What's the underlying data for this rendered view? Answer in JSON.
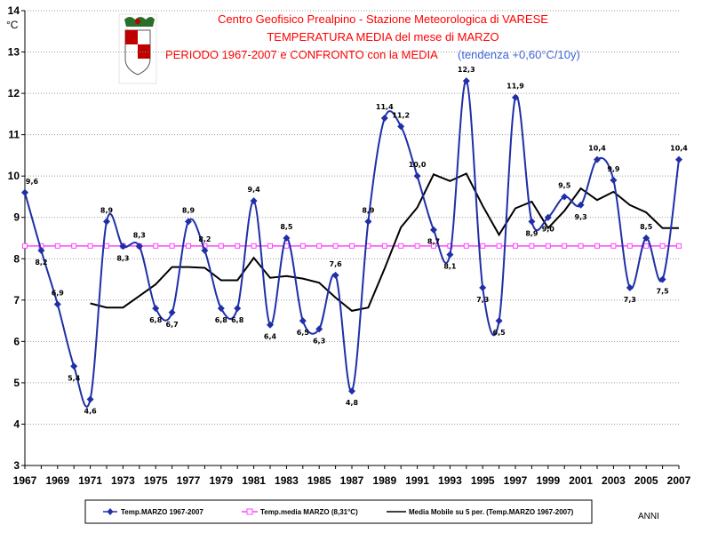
{
  "chart_data": {
    "type": "line",
    "title_lines": [
      "Centro Geofisico Prealpino - Stazione Meteorologica di VARESE",
      "TEMPERATURA MEDIA del mese di MARZO",
      "PERIODO 1967-2007 e CONFRONTO con la MEDIA"
    ],
    "trend_note": "(tendenza +0,60°C/10y)",
    "ylabel": "°C",
    "xlabel": "ANNI",
    "ylim": [
      3,
      14
    ],
    "yticks": [
      3,
      4,
      5,
      6,
      7,
      8,
      9,
      10,
      11,
      12,
      13,
      14
    ],
    "xlim": [
      1967,
      2007
    ],
    "xticks": [
      1967,
      1969,
      1971,
      1973,
      1975,
      1977,
      1979,
      1981,
      1983,
      1985,
      1987,
      1989,
      1991,
      1993,
      1995,
      1997,
      1999,
      2001,
      2003,
      2005,
      2007
    ],
    "x": [
      1967,
      1968,
      1969,
      1970,
      1971,
      1972,
      1973,
      1974,
      1975,
      1976,
      1977,
      1978,
      1979,
      1980,
      1981,
      1982,
      1983,
      1984,
      1985,
      1986,
      1987,
      1988,
      1989,
      1990,
      1991,
      1992,
      1993,
      1994,
      1995,
      1996,
      1997,
      1998,
      1999,
      2000,
      2001,
      2002,
      2003,
      2004,
      2005,
      2006,
      2007
    ],
    "series": [
      {
        "name": "Temp.MARZO 1967-2007",
        "color": "#1f2fa8",
        "values": [
          9.6,
          8.2,
          6.9,
          5.4,
          4.6,
          8.9,
          8.3,
          8.3,
          6.8,
          6.7,
          8.9,
          8.2,
          6.8,
          6.8,
          9.4,
          6.4,
          8.5,
          6.5,
          6.3,
          7.6,
          4.8,
          8.9,
          11.4,
          11.2,
          10.0,
          8.7,
          8.1,
          12.3,
          7.3,
          6.5,
          11.9,
          8.9,
          9.0,
          9.5,
          9.3,
          10.4,
          9.9,
          7.3,
          8.5,
          7.5,
          10.4
        ],
        "labels": [
          "9,6",
          "8,2",
          "6,9",
          "5,4",
          "4,6",
          "8,9",
          "8,3",
          "8,3",
          "6,8",
          "6,7",
          "8,9",
          "8,2",
          "6,8",
          "6,8",
          "9,4",
          "6,4",
          "8,5",
          "6,5",
          "6,3",
          "7,6",
          "4,8",
          "8,9",
          "11,4",
          "11,2",
          "10,0",
          "8,7",
          "8,1",
          "12,3",
          "7,3",
          "6,5",
          "11,9",
          "8,9",
          "9,0",
          "9,5",
          "9,3",
          "10,4",
          "9,9",
          "7,3",
          "8,5",
          "7,5",
          "10,4"
        ]
      },
      {
        "name": "Temp.media MARZO (8,31°C)",
        "color": "#ff44ff",
        "value": 8.31
      },
      {
        "name": "Media Mobile su 5 per. (Temp.MARZO 1967-2007)",
        "color": "#000000",
        "x": [
          1971,
          1972,
          1973,
          1974,
          1975,
          1976,
          1977,
          1978,
          1979,
          1980,
          1981,
          1982,
          1983,
          1984,
          1985,
          1986,
          1987,
          1988,
          1989,
          1990,
          1991,
          1992,
          1993,
          1994,
          1995,
          1996,
          1997,
          1998,
          1999,
          2000,
          2001,
          2002,
          2003,
          2004,
          2005,
          2006,
          2007
        ],
        "values": [
          6.92,
          6.82,
          6.82,
          7.1,
          7.38,
          7.8,
          7.8,
          7.78,
          7.48,
          7.48,
          8.02,
          7.54,
          7.58,
          7.52,
          7.42,
          7.06,
          6.74,
          6.82,
          7.76,
          8.76,
          9.24,
          10.04,
          9.88,
          10.06,
          9.28,
          8.58,
          9.22,
          9.38,
          8.74,
          9.16,
          9.7,
          9.42,
          9.62,
          9.3,
          9.12,
          8.74,
          8.74
        ]
      }
    ],
    "legend": [
      "Temp.MARZO 1967-2007",
      "Temp.media MARZO (8,31°C)",
      "Media Mobile su 5 per. (Temp.MARZO 1967-2007)"
    ]
  }
}
